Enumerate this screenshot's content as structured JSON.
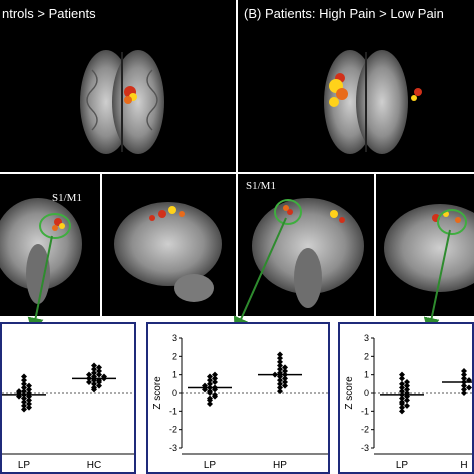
{
  "figure": {
    "panel_a_title": "ntrols > Patients",
    "panel_b_title": "(B) Patients: High Pain > Low Pain",
    "roi_label_left": "S1/M1",
    "roi_label_right": "S1/M1"
  },
  "chart_data": [
    {
      "type": "scatter",
      "title": "",
      "ylabel": "",
      "categories": [
        "LP",
        "HC"
      ],
      "ylim": [
        -3,
        3
      ],
      "yticks": [],
      "series": [
        {
          "category": "LP",
          "mean": -0.1,
          "values": [
            -0.9,
            -0.7,
            -0.6,
            -0.5,
            -0.4,
            -0.3,
            -0.2,
            -0.2,
            -0.1,
            0,
            0,
            0.1,
            0.2,
            0.3,
            0.4,
            0.5,
            0.7,
            0.9,
            -0.8,
            0.1
          ]
        },
        {
          "category": "HC",
          "mean": 0.8,
          "values": [
            0.2,
            0.3,
            0.4,
            0.5,
            0.6,
            0.7,
            0.7,
            0.8,
            0.8,
            0.9,
            1.0,
            1.0,
            1.1,
            1.2,
            1.3,
            1.4,
            1.5,
            0.6,
            0.9
          ]
        }
      ]
    },
    {
      "type": "scatter",
      "title": "",
      "ylabel": "Z score",
      "categories": [
        "LP",
        "HP"
      ],
      "ylim": [
        -3,
        3
      ],
      "yticks": [
        "3",
        "2",
        "1",
        "0",
        "-1",
        "-2",
        "-3"
      ],
      "series": [
        {
          "category": "LP",
          "mean": 0.3,
          "values": [
            -0.6,
            -0.4,
            -0.3,
            -0.2,
            0,
            0.1,
            0.2,
            0.3,
            0.3,
            0.4,
            0.5,
            0.6,
            0.7,
            0.8,
            0.9,
            1.0,
            0.2,
            -0.1
          ]
        },
        {
          "category": "HP",
          "mean": 1.0,
          "values": [
            0.1,
            0.3,
            0.5,
            0.6,
            0.7,
            0.8,
            0.9,
            1.0,
            1.0,
            1.1,
            1.2,
            1.3,
            1.4,
            1.5,
            1.7,
            1.9,
            2.1,
            0.4
          ]
        }
      ]
    },
    {
      "type": "scatter",
      "title": "",
      "ylabel": "Z score",
      "categories": [
        "LP",
        "H"
      ],
      "ylim": [
        -3,
        3
      ],
      "yticks": [
        "3",
        "2",
        "1",
        "0",
        "-1",
        "-2",
        "-3"
      ],
      "series": [
        {
          "category": "LP",
          "mean": -0.1,
          "values": [
            -1.0,
            -0.8,
            -0.6,
            -0.5,
            -0.4,
            -0.3,
            -0.2,
            -0.1,
            0,
            0.1,
            0.2,
            0.3,
            0.4,
            0.5,
            0.6,
            0.8,
            1.0,
            -0.7
          ]
        },
        {
          "category": "H",
          "mean": 0.6,
          "values": [
            0.0,
            0.2,
            0.4,
            0.6,
            0.8,
            1.0,
            1.2,
            0.3,
            0.7
          ]
        }
      ]
    }
  ],
  "colors": {
    "frame": "#1f2a7a",
    "arrow": "#2e8b2e",
    "activation_hot": "#ffd21a",
    "activation_red": "#d1311a"
  }
}
